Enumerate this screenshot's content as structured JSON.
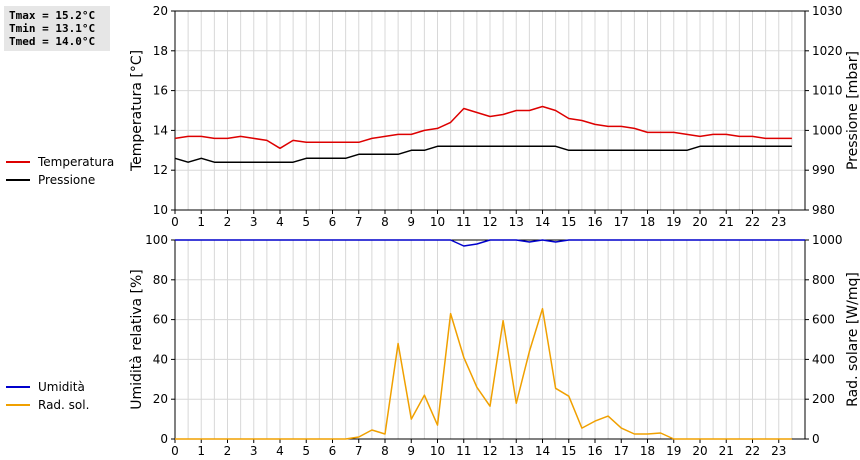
{
  "stats": {
    "tmax": "Tmax = 15.2°C",
    "tmin": "Tmin = 13.1°C",
    "tmed": "Tmed = 14.0°C"
  },
  "colors": {
    "temperature": "#dd0000",
    "pressure": "#000000",
    "humidity": "#0000cc",
    "solar": "#f0a000",
    "grid": "#d8d8d8"
  },
  "chart_data": [
    {
      "type": "line",
      "ylabel": "Temperatura [°C]",
      "y2label": "Pressione [mbar]",
      "xlim": [
        0,
        24
      ],
      "ylim": [
        10,
        20
      ],
      "y2lim": [
        980,
        1030
      ],
      "x_ticks": [
        "0",
        "1",
        "2",
        "3",
        "4",
        "5",
        "6",
        "7",
        "8",
        "9",
        "10",
        "11",
        "12",
        "13",
        "14",
        "15",
        "16",
        "17",
        "18",
        "19",
        "20",
        "21",
        "22",
        "23"
      ],
      "y_ticks": [
        "10",
        "12",
        "14",
        "16",
        "18",
        "20"
      ],
      "y2_ticks": [
        "980",
        "990",
        "1000",
        "1010",
        "1020",
        "1030"
      ],
      "grid": true,
      "series": [
        {
          "name": "Temperatura",
          "axis": "left",
          "x": [
            0,
            0.5,
            1,
            1.5,
            2,
            2.5,
            3,
            3.5,
            4,
            4.5,
            5,
            5.5,
            6,
            6.5,
            7,
            7.5,
            8,
            8.5,
            9,
            9.5,
            10,
            10.5,
            11,
            11.5,
            12,
            12.5,
            13,
            13.5,
            14,
            14.5,
            15,
            15.5,
            16,
            16.5,
            17,
            17.5,
            18,
            18.5,
            19,
            19.5,
            20,
            20.5,
            21,
            21.5,
            22,
            22.5,
            23,
            23.5
          ],
          "values": [
            13.6,
            13.7,
            13.7,
            13.6,
            13.6,
            13.7,
            13.6,
            13.5,
            13.1,
            13.5,
            13.4,
            13.4,
            13.4,
            13.4,
            13.4,
            13.6,
            13.7,
            13.8,
            13.8,
            14.0,
            14.1,
            14.4,
            15.1,
            14.9,
            14.7,
            14.8,
            15.0,
            15.0,
            15.2,
            15.0,
            14.6,
            14.5,
            14.3,
            14.2,
            14.2,
            14.1,
            13.9,
            13.9,
            13.9,
            13.8,
            13.7,
            13.8,
            13.8,
            13.7,
            13.7,
            13.6,
            13.6,
            13.6
          ]
        },
        {
          "name": "Pressione",
          "axis": "right",
          "x": [
            0,
            0.5,
            1,
            1.5,
            2,
            2.5,
            3,
            3.5,
            4,
            4.5,
            5,
            5.5,
            6,
            6.5,
            7,
            7.5,
            8,
            8.5,
            9,
            9.5,
            10,
            10.5,
            11,
            11.5,
            12,
            12.5,
            13,
            13.5,
            14,
            14.5,
            15,
            15.5,
            16,
            16.5,
            17,
            17.5,
            18,
            18.5,
            19,
            19.5,
            20,
            20.5,
            21,
            21.5,
            22,
            22.5,
            23,
            23.5
          ],
          "values": [
            993,
            992,
            993,
            992,
            992,
            992,
            992,
            992,
            992,
            992,
            993,
            993,
            993,
            993,
            994,
            994,
            994,
            994,
            995,
            995,
            996,
            996,
            996,
            996,
            996,
            996,
            996,
            996,
            996,
            996,
            995,
            995,
            995,
            995,
            995,
            995,
            995,
            995,
            995,
            995,
            996,
            996,
            996,
            996,
            996,
            996,
            996,
            996
          ]
        }
      ]
    },
    {
      "type": "line",
      "ylabel": "Umidità relativa [%]",
      "y2label": "Rad. solare [W/mq]",
      "xlim": [
        0,
        24
      ],
      "ylim": [
        0,
        100
      ],
      "y2lim": [
        0,
        1000
      ],
      "x_ticks": [
        "0",
        "1",
        "2",
        "3",
        "4",
        "5",
        "6",
        "7",
        "8",
        "9",
        "10",
        "11",
        "12",
        "13",
        "14",
        "15",
        "16",
        "17",
        "18",
        "19",
        "20",
        "21",
        "22",
        "23"
      ],
      "y_ticks": [
        "0",
        "20",
        "40",
        "60",
        "80",
        "100"
      ],
      "y2_ticks": [
        "0",
        "200",
        "400",
        "600",
        "800",
        "1000"
      ],
      "grid": true,
      "series": [
        {
          "name": "Umidità",
          "axis": "left",
          "x": [
            0,
            10.5,
            11,
            11.5,
            12,
            12.5,
            13,
            13.5,
            14,
            14.5,
            15,
            24
          ],
          "values": [
            100,
            100,
            97,
            98,
            100,
            100,
            100,
            99,
            100,
            99,
            100,
            100
          ]
        },
        {
          "name": "Rad. sol.",
          "axis": "right",
          "x": [
            0,
            1,
            2,
            3,
            4,
            5,
            6,
            6.5,
            7,
            7.5,
            8,
            8.5,
            9,
            9.5,
            10,
            10.5,
            11,
            11.5,
            12,
            12.5,
            13,
            13.5,
            14,
            14.5,
            15,
            15.5,
            16,
            16.5,
            17,
            17.5,
            18,
            18.5,
            19,
            20,
            21,
            22,
            23,
            23.5
          ],
          "values": [
            0,
            0,
            0,
            0,
            0,
            0,
            0,
            0,
            10,
            45,
            25,
            480,
            100,
            220,
            70,
            630,
            410,
            260,
            165,
            595,
            180,
            440,
            655,
            255,
            215,
            55,
            90,
            115,
            55,
            25,
            25,
            30,
            0,
            0,
            0,
            0,
            0,
            0
          ]
        }
      ]
    }
  ]
}
